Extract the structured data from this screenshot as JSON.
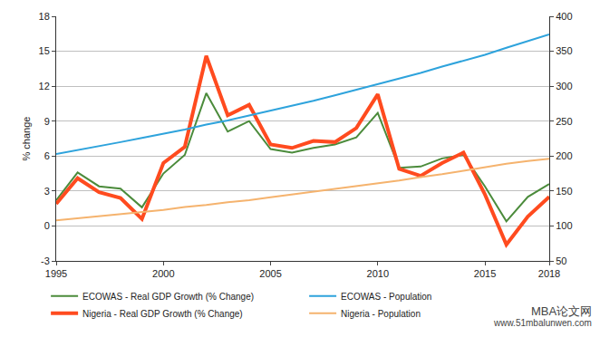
{
  "chart_data": {
    "type": "line",
    "y_label": "% change",
    "x": [
      1995,
      1996,
      1997,
      1998,
      1999,
      2000,
      2001,
      2002,
      2003,
      2004,
      2005,
      2006,
      2007,
      2008,
      2009,
      2010,
      2011,
      2012,
      2013,
      2014,
      2015,
      2016,
      2017,
      2018
    ],
    "series": [
      {
        "name": "ECOWAS - Real GDP Growth (% Change)",
        "color": "#4b8b3b",
        "values": [
          2.2,
          4.6,
          3.4,
          3.2,
          1.6,
          4.5,
          6.1,
          11.4,
          8.1,
          9.0,
          6.6,
          6.3,
          6.7,
          7.0,
          7.6,
          9.7,
          5.0,
          5.1,
          5.8,
          6.1,
          3.4,
          0.4,
          2.5,
          3.6
        ]
      },
      {
        "name": "ECOWAS - Population",
        "color": "#2ea3dc",
        "axis": "y2",
        "values": [
          203,
          208.5,
          214,
          220,
          226,
          232,
          238,
          245,
          251,
          258,
          265,
          272,
          279,
          287,
          295,
          303,
          311,
          319,
          328,
          336,
          345,
          355,
          364,
          374
        ]
      },
      {
        "name": "Nigeria - Real GDP Growth (% Change)",
        "color": "#ff4b1f",
        "line_style": "thick",
        "values": [
          1.9,
          4.1,
          2.9,
          2.4,
          0.6,
          5.4,
          6.8,
          14.6,
          9.5,
          10.4,
          7.0,
          6.7,
          7.3,
          7.2,
          8.4,
          11.3,
          4.9,
          4.3,
          5.4,
          6.3,
          2.7,
          -1.6,
          0.8,
          2.5
        ]
      },
      {
        "name": "Nigeria - Population",
        "color": "#f5b36e",
        "axis": "y2",
        "values": [
          108,
          111,
          114,
          117,
          120,
          123,
          127,
          130,
          134,
          137,
          141,
          145,
          149,
          153,
          157,
          161,
          165,
          170,
          174,
          179,
          184,
          189,
          193,
          196
        ]
      }
    ],
    "xlim": [
      1995,
      2018
    ],
    "xticks": [
      1995,
      2000,
      2005,
      2010,
      2015,
      2018
    ],
    "ylim": [
      -3,
      18
    ],
    "yticks": [
      -3,
      0,
      3,
      6,
      9,
      12,
      15,
      18
    ],
    "y2lim": [
      50,
      400
    ],
    "y2ticks": [
      50,
      100,
      150,
      200,
      250,
      300,
      350,
      400
    ],
    "grid": true,
    "legend": "bottom",
    "annotations": [
      "MBA论文网",
      "www.51mbalunwen.com"
    ]
  }
}
